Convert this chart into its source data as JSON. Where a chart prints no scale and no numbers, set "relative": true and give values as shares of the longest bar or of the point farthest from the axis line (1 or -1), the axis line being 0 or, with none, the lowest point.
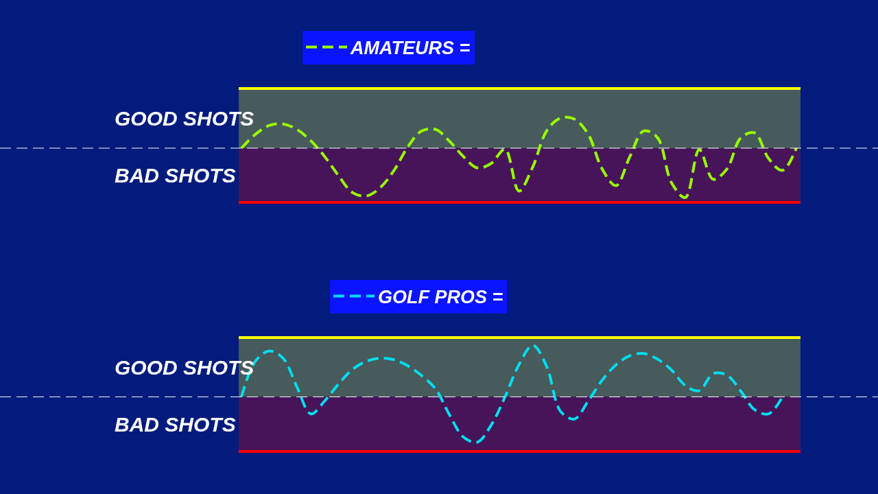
{
  "chart_data": [
    {
      "type": "line",
      "relative": true,
      "legend": "top",
      "line_style": "dashed",
      "categories": [
        null,
        null,
        null,
        null,
        null,
        null,
        null,
        null,
        null,
        null,
        null,
        null,
        null,
        null,
        null,
        null,
        null,
        null,
        null,
        null,
        null,
        null,
        null,
        null,
        null,
        null,
        null,
        null,
        null,
        null,
        null,
        null,
        null,
        null,
        null,
        null,
        null,
        null,
        null,
        null,
        null
      ],
      "series": [
        {
          "name": "AMATEURS =",
          "color": "#99ff00",
          "values": [
            0,
            0.28,
            0.46,
            0.49,
            0.38,
            0.15,
            -0.17,
            -0.56,
            -0.9,
            -0.97,
            -0.8,
            -0.45,
            0.03,
            0.35,
            0.38,
            0.14,
            -0.17,
            -0.4,
            -0.31,
            -0.02,
            -0.87,
            -0.38,
            0.35,
            0.61,
            0.59,
            0.28,
            -0.42,
            -0.76,
            -0.17,
            0.35,
            0.21,
            -0.7,
            -1,
            -0.03,
            -0.63,
            -0.42,
            0.21,
            0.31,
            -0.21,
            -0.45,
            0
          ]
        }
      ],
      "bands": [
        {
          "axis": "y",
          "from": 0,
          "to": 1.21,
          "label": "GOOD SHOTS",
          "color": "#475a5c"
        },
        {
          "axis": "y",
          "from": -1.1,
          "to": 0,
          "label": "BAD SHOTS",
          "color": "#471459"
        }
      ],
      "ref_lines": [
        {
          "axis": "y",
          "value": 0,
          "color": "#ffffff",
          "line_style": "dashed"
        },
        {
          "axis": "y",
          "value": 1.21,
          "color": "#ffff00"
        },
        {
          "axis": "y",
          "value": -1.1,
          "color": "#ff0000"
        }
      ]
    },
    {
      "type": "line",
      "relative": true,
      "legend": "top",
      "line_style": "dashed",
      "categories": [
        null,
        null,
        null,
        null,
        null,
        null,
        null,
        null,
        null,
        null,
        null,
        null,
        null,
        null,
        null,
        null,
        null,
        null,
        null,
        null,
        null,
        null,
        null,
        null,
        null,
        null,
        null,
        null,
        null,
        null,
        null,
        null,
        null,
        null,
        null,
        null,
        null,
        null,
        null,
        null,
        null
      ],
      "series": [
        {
          "name": "GOLF PROS =",
          "color": "#00ddee",
          "values": [
            0,
            0.69,
            0.89,
            0.75,
            0.19,
            -0.33,
            -0.08,
            0.25,
            0.53,
            0.69,
            0.75,
            0.72,
            0.6,
            0.41,
            0.15,
            -0.35,
            -0.78,
            -0.88,
            -0.55,
            0,
            0.62,
            1,
            0.59,
            -0.28,
            -0.43,
            -0.08,
            0.32,
            0.62,
            0.8,
            0.84,
            0.73,
            0.52,
            0.22,
            0.12,
            0.45,
            0.42,
            0.11,
            -0.25,
            -0.33,
            0,
            null
          ]
        }
      ],
      "bands": [
        {
          "axis": "y",
          "from": 0,
          "to": 1.15,
          "label": "GOOD SHOTS",
          "color": "#475a5c"
        },
        {
          "axis": "y",
          "from": -1.06,
          "to": 0,
          "label": "BAD SHOTS",
          "color": "#471459"
        }
      ],
      "ref_lines": [
        {
          "axis": "y",
          "value": 0,
          "color": "#ffffff",
          "line_style": "dashed"
        },
        {
          "axis": "y",
          "value": 1.15,
          "color": "#ffff00"
        },
        {
          "axis": "y",
          "value": -1.06,
          "color": "#ff0000"
        }
      ]
    }
  ]
}
